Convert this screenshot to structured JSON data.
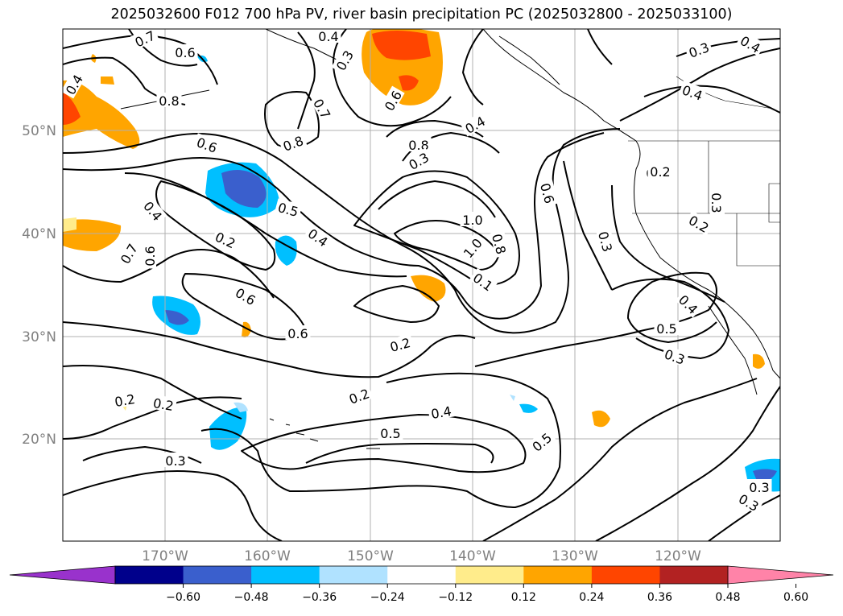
{
  "title": "2025032600 F012 700 hPa PV, river basin precipitation PC (2025032800 - 2025033100)",
  "lat_labels": [
    "50°N",
    "40°N",
    "30°N",
    "20°N"
  ],
  "lon_labels": [
    "170°W",
    "160°W",
    "150°W",
    "140°W",
    "130°W",
    "120°W"
  ],
  "contour_labels": [
    "0.7",
    "0.6",
    "0.4",
    "0.4",
    "0.3",
    "0.8",
    "0.7",
    "0.8",
    "0.6",
    "0.8",
    "0.6",
    "0.4",
    "0.3",
    "0.4",
    "0.3",
    "0.4",
    "0.4",
    "0.6",
    "0.5",
    "0.4",
    "0.2",
    "0.7",
    "0.6",
    "1.0",
    "1.0",
    "0.8",
    "0.6",
    "0.2",
    "0.3",
    "0.2",
    "0.3",
    "0.1",
    "0.6",
    "0.5",
    "0.2",
    "0.3",
    "0.4",
    "0.5",
    "0.3",
    "0.2",
    "0.2",
    "0.2",
    "0.4",
    "0.5",
    "0.2",
    "0.3",
    "0.3"
  ],
  "colorbar": {
    "ticks": [
      "−0.60",
      "−0.48",
      "−0.36",
      "−0.24",
      "−0.12",
      "0.12",
      "0.24",
      "0.36",
      "0.48",
      "0.60"
    ],
    "colors": [
      "#9932cc",
      "#00008b",
      "#3a5fcd",
      "#00bfff",
      "#b0e2ff",
      "#ffffff",
      "#ffec8b",
      "#ffa500",
      "#ff4500",
      "#b22222",
      "#ff83a8"
    ]
  }
}
